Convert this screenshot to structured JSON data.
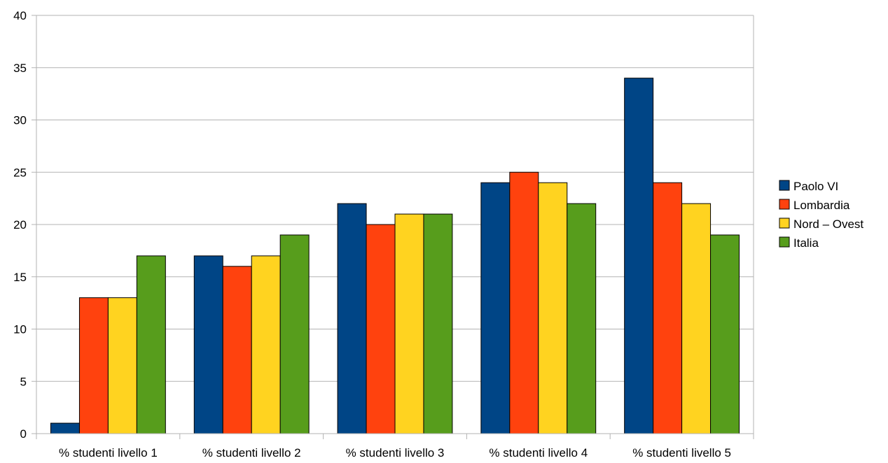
{
  "chart_data": {
    "type": "bar",
    "title": "",
    "xlabel": "",
    "ylabel": "",
    "categories": [
      "% studenti livello 1",
      "% studenti livello 2",
      "% studenti livello 3",
      "% studenti livello 4",
      "% studenti livello 5"
    ],
    "series": [
      {
        "name": "Paolo VI",
        "color": "#004586",
        "values": [
          1,
          17,
          22,
          24,
          34
        ]
      },
      {
        "name": "Lombardia",
        "color": "#FF420E",
        "values": [
          13,
          16,
          20,
          25,
          24
        ]
      },
      {
        "name": "Nord – Ovest",
        "color": "#FFD320",
        "values": [
          13,
          17,
          21,
          24,
          22
        ]
      },
      {
        "name": "Italia",
        "color": "#579D1C",
        "values": [
          17,
          19,
          21,
          22,
          19
        ]
      }
    ],
    "ylim": [
      0,
      40
    ],
    "yticks": [
      0,
      5,
      10,
      15,
      20,
      25,
      30,
      35,
      40
    ],
    "grid": true,
    "legend_position": "right"
  }
}
